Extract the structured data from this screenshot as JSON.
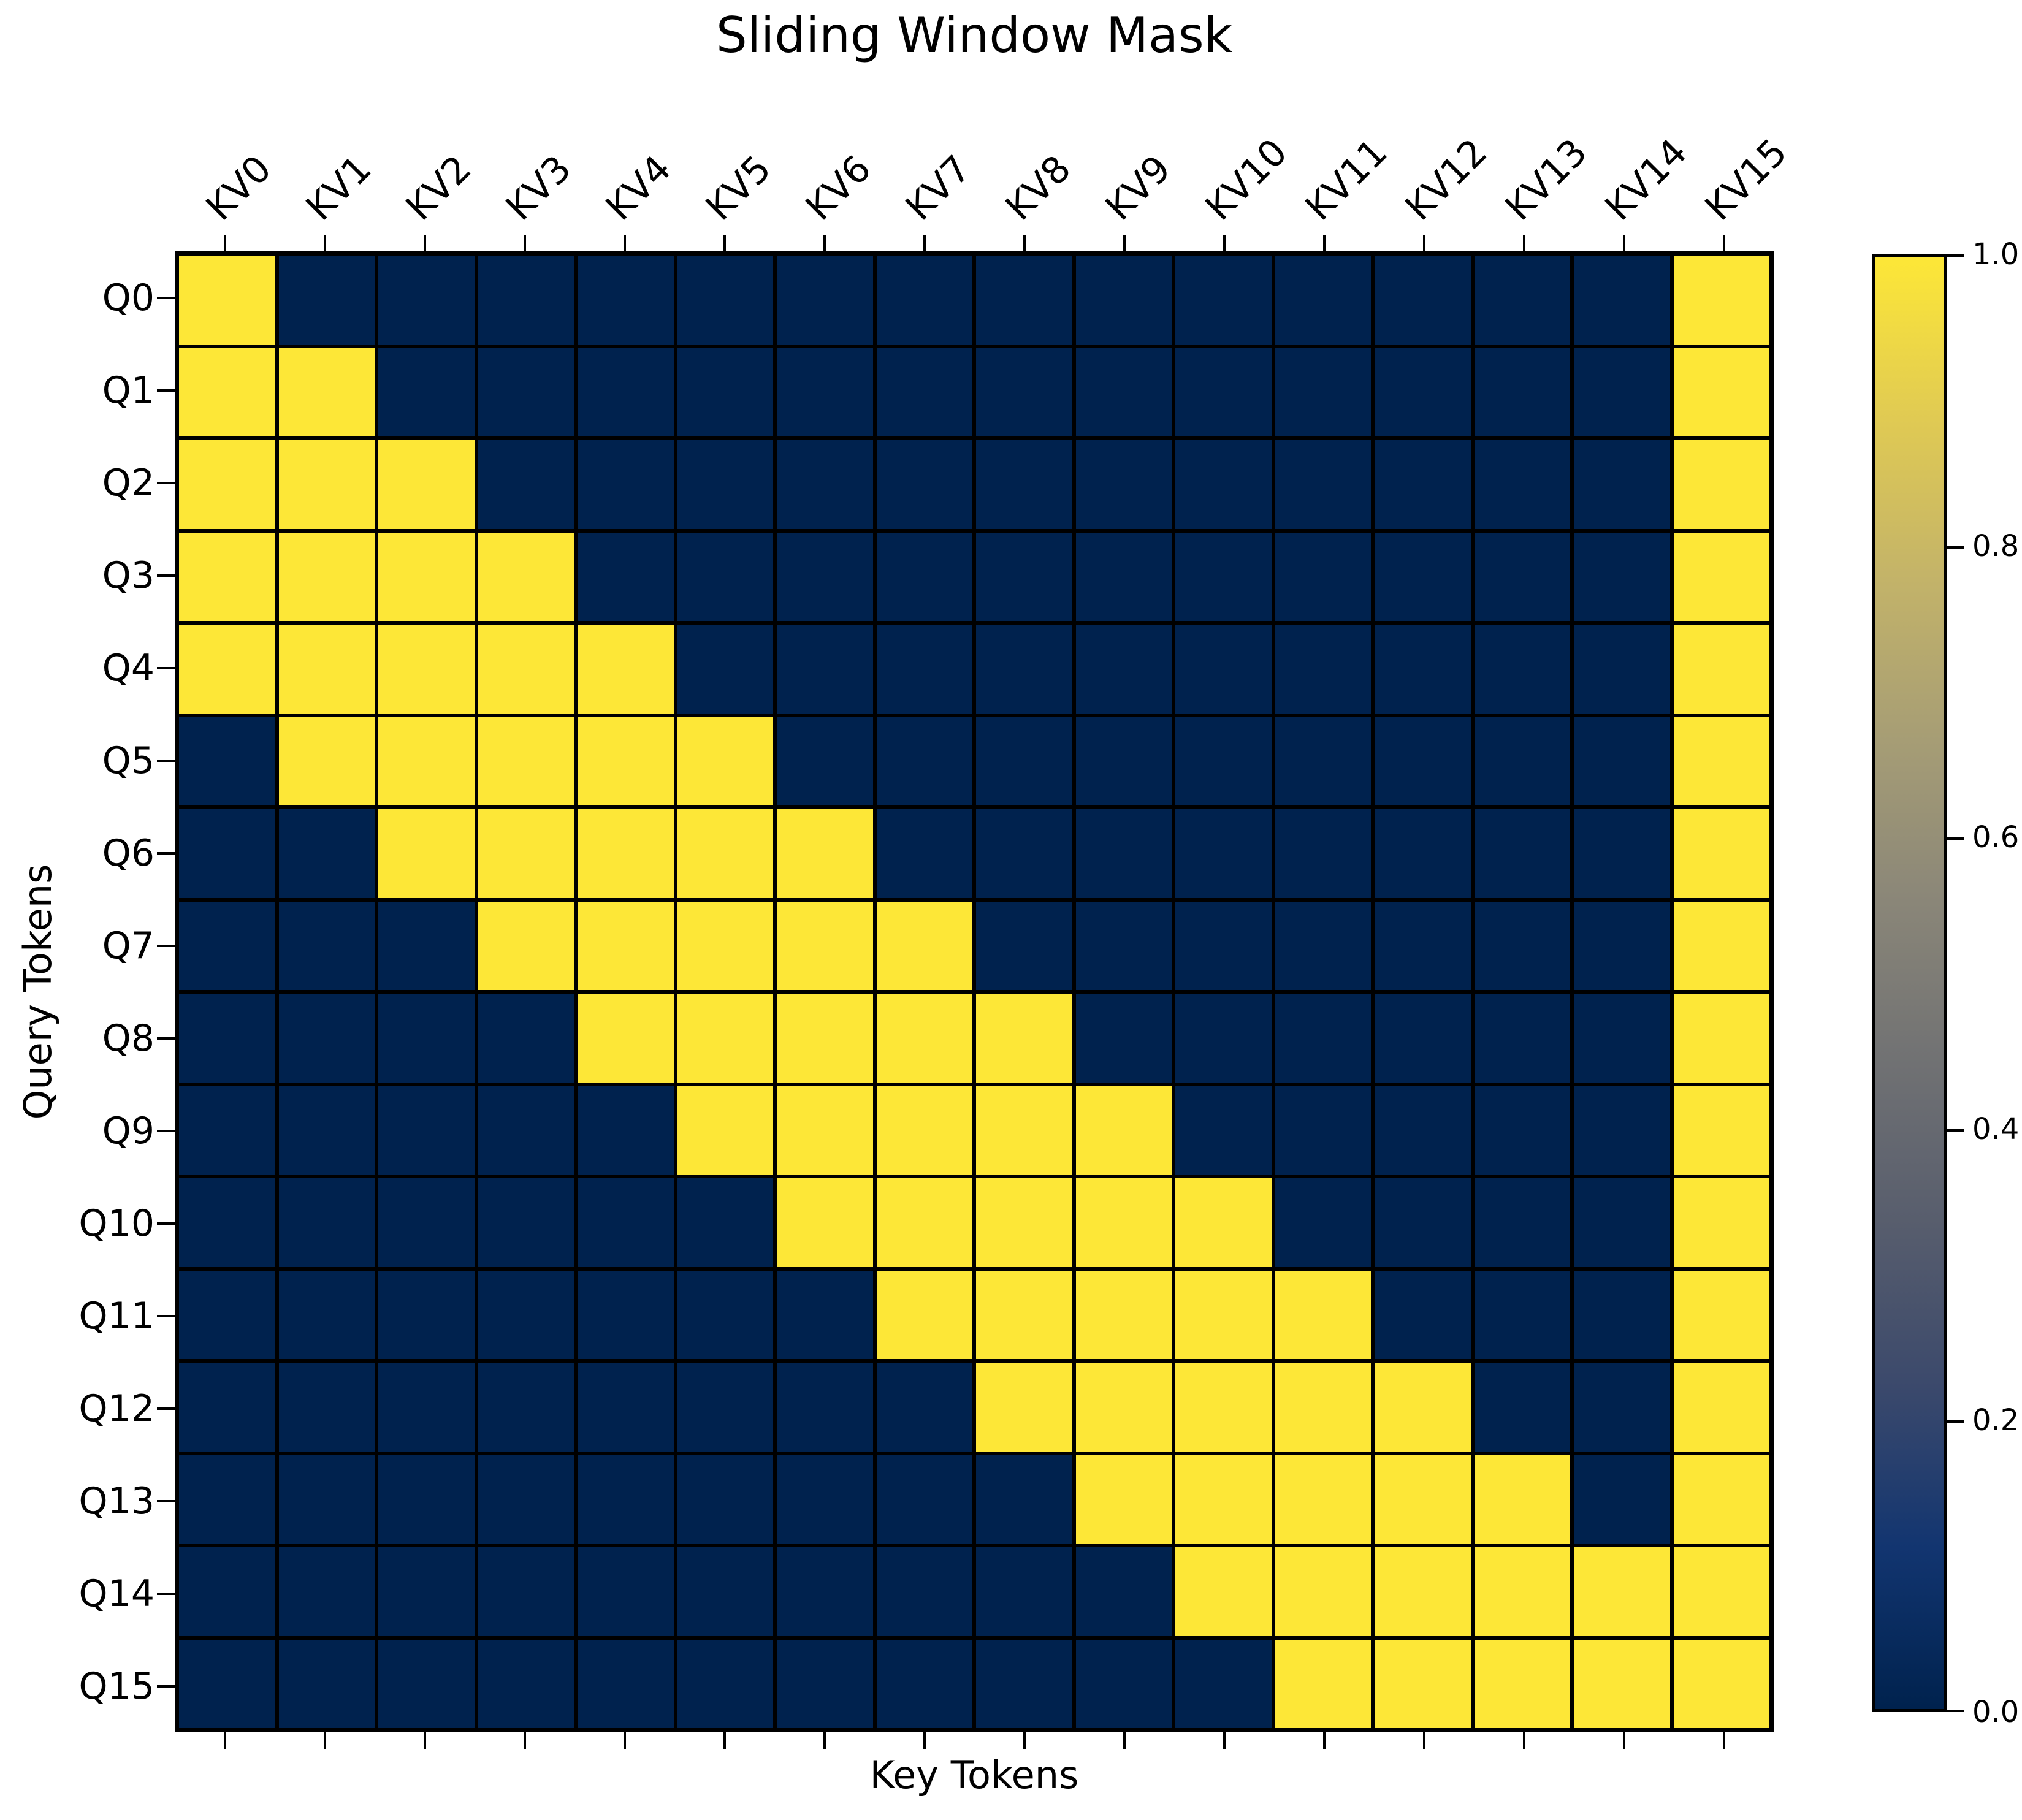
{
  "chart_data": {
    "type": "heatmap",
    "title": "Sliding Window Mask",
    "xlabel": "Key Tokens",
    "ylabel": "Query Tokens",
    "x_tick_labels": [
      "KV0",
      "KV1",
      "KV2",
      "KV3",
      "KV4",
      "KV5",
      "KV6",
      "KV7",
      "KV8",
      "KV9",
      "KV10",
      "KV11",
      "KV12",
      "KV13",
      "KV14",
      "KV15"
    ],
    "y_tick_labels": [
      "Q0",
      "Q1",
      "Q2",
      "Q3",
      "Q4",
      "Q5",
      "Q6",
      "Q7",
      "Q8",
      "Q9",
      "Q10",
      "Q11",
      "Q12",
      "Q13",
      "Q14",
      "Q15"
    ],
    "value_range": [
      0.0,
      1.0
    ],
    "matrix": [
      [
        1,
        0,
        0,
        0,
        0,
        0,
        0,
        0,
        0,
        0,
        0,
        0,
        0,
        0,
        0,
        1
      ],
      [
        1,
        1,
        0,
        0,
        0,
        0,
        0,
        0,
        0,
        0,
        0,
        0,
        0,
        0,
        0,
        1
      ],
      [
        1,
        1,
        1,
        0,
        0,
        0,
        0,
        0,
        0,
        0,
        0,
        0,
        0,
        0,
        0,
        1
      ],
      [
        1,
        1,
        1,
        1,
        0,
        0,
        0,
        0,
        0,
        0,
        0,
        0,
        0,
        0,
        0,
        1
      ],
      [
        1,
        1,
        1,
        1,
        1,
        0,
        0,
        0,
        0,
        0,
        0,
        0,
        0,
        0,
        0,
        1
      ],
      [
        0,
        1,
        1,
        1,
        1,
        1,
        0,
        0,
        0,
        0,
        0,
        0,
        0,
        0,
        0,
        1
      ],
      [
        0,
        0,
        1,
        1,
        1,
        1,
        1,
        0,
        0,
        0,
        0,
        0,
        0,
        0,
        0,
        1
      ],
      [
        0,
        0,
        0,
        1,
        1,
        1,
        1,
        1,
        0,
        0,
        0,
        0,
        0,
        0,
        0,
        1
      ],
      [
        0,
        0,
        0,
        0,
        1,
        1,
        1,
        1,
        1,
        0,
        0,
        0,
        0,
        0,
        0,
        1
      ],
      [
        0,
        0,
        0,
        0,
        0,
        1,
        1,
        1,
        1,
        1,
        0,
        0,
        0,
        0,
        0,
        1
      ],
      [
        0,
        0,
        0,
        0,
        0,
        0,
        1,
        1,
        1,
        1,
        1,
        0,
        0,
        0,
        0,
        1
      ],
      [
        0,
        0,
        0,
        0,
        0,
        0,
        0,
        1,
        1,
        1,
        1,
        1,
        0,
        0,
        0,
        1
      ],
      [
        0,
        0,
        0,
        0,
        0,
        0,
        0,
        0,
        1,
        1,
        1,
        1,
        1,
        0,
        0,
        1
      ],
      [
        0,
        0,
        0,
        0,
        0,
        0,
        0,
        0,
        0,
        1,
        1,
        1,
        1,
        1,
        0,
        1
      ],
      [
        0,
        0,
        0,
        0,
        0,
        0,
        0,
        0,
        0,
        0,
        1,
        1,
        1,
        1,
        1,
        1
      ],
      [
        0,
        0,
        0,
        0,
        0,
        0,
        0,
        0,
        0,
        0,
        0,
        1,
        1,
        1,
        1,
        1
      ]
    ],
    "colorbar_tick_labels": [
      "1.0",
      "0.8",
      "0.6",
      "0.4",
      "0.2",
      "0.0"
    ],
    "colormap_stops_bottom_to_top": [
      "#00224e",
      "#123570",
      "#3b496c",
      "#575d6d",
      "#707173",
      "#8a8678",
      "#a69d75",
      "#c3b369",
      "#e0ca53",
      "#fde737"
    ],
    "colors": {
      "value_0": "#00224e",
      "value_1": "#fde737",
      "gridline": "#000000",
      "background": "#ffffff",
      "text": "#000000"
    },
    "legend_position": "right-colorbar",
    "grid_lines": true
  }
}
